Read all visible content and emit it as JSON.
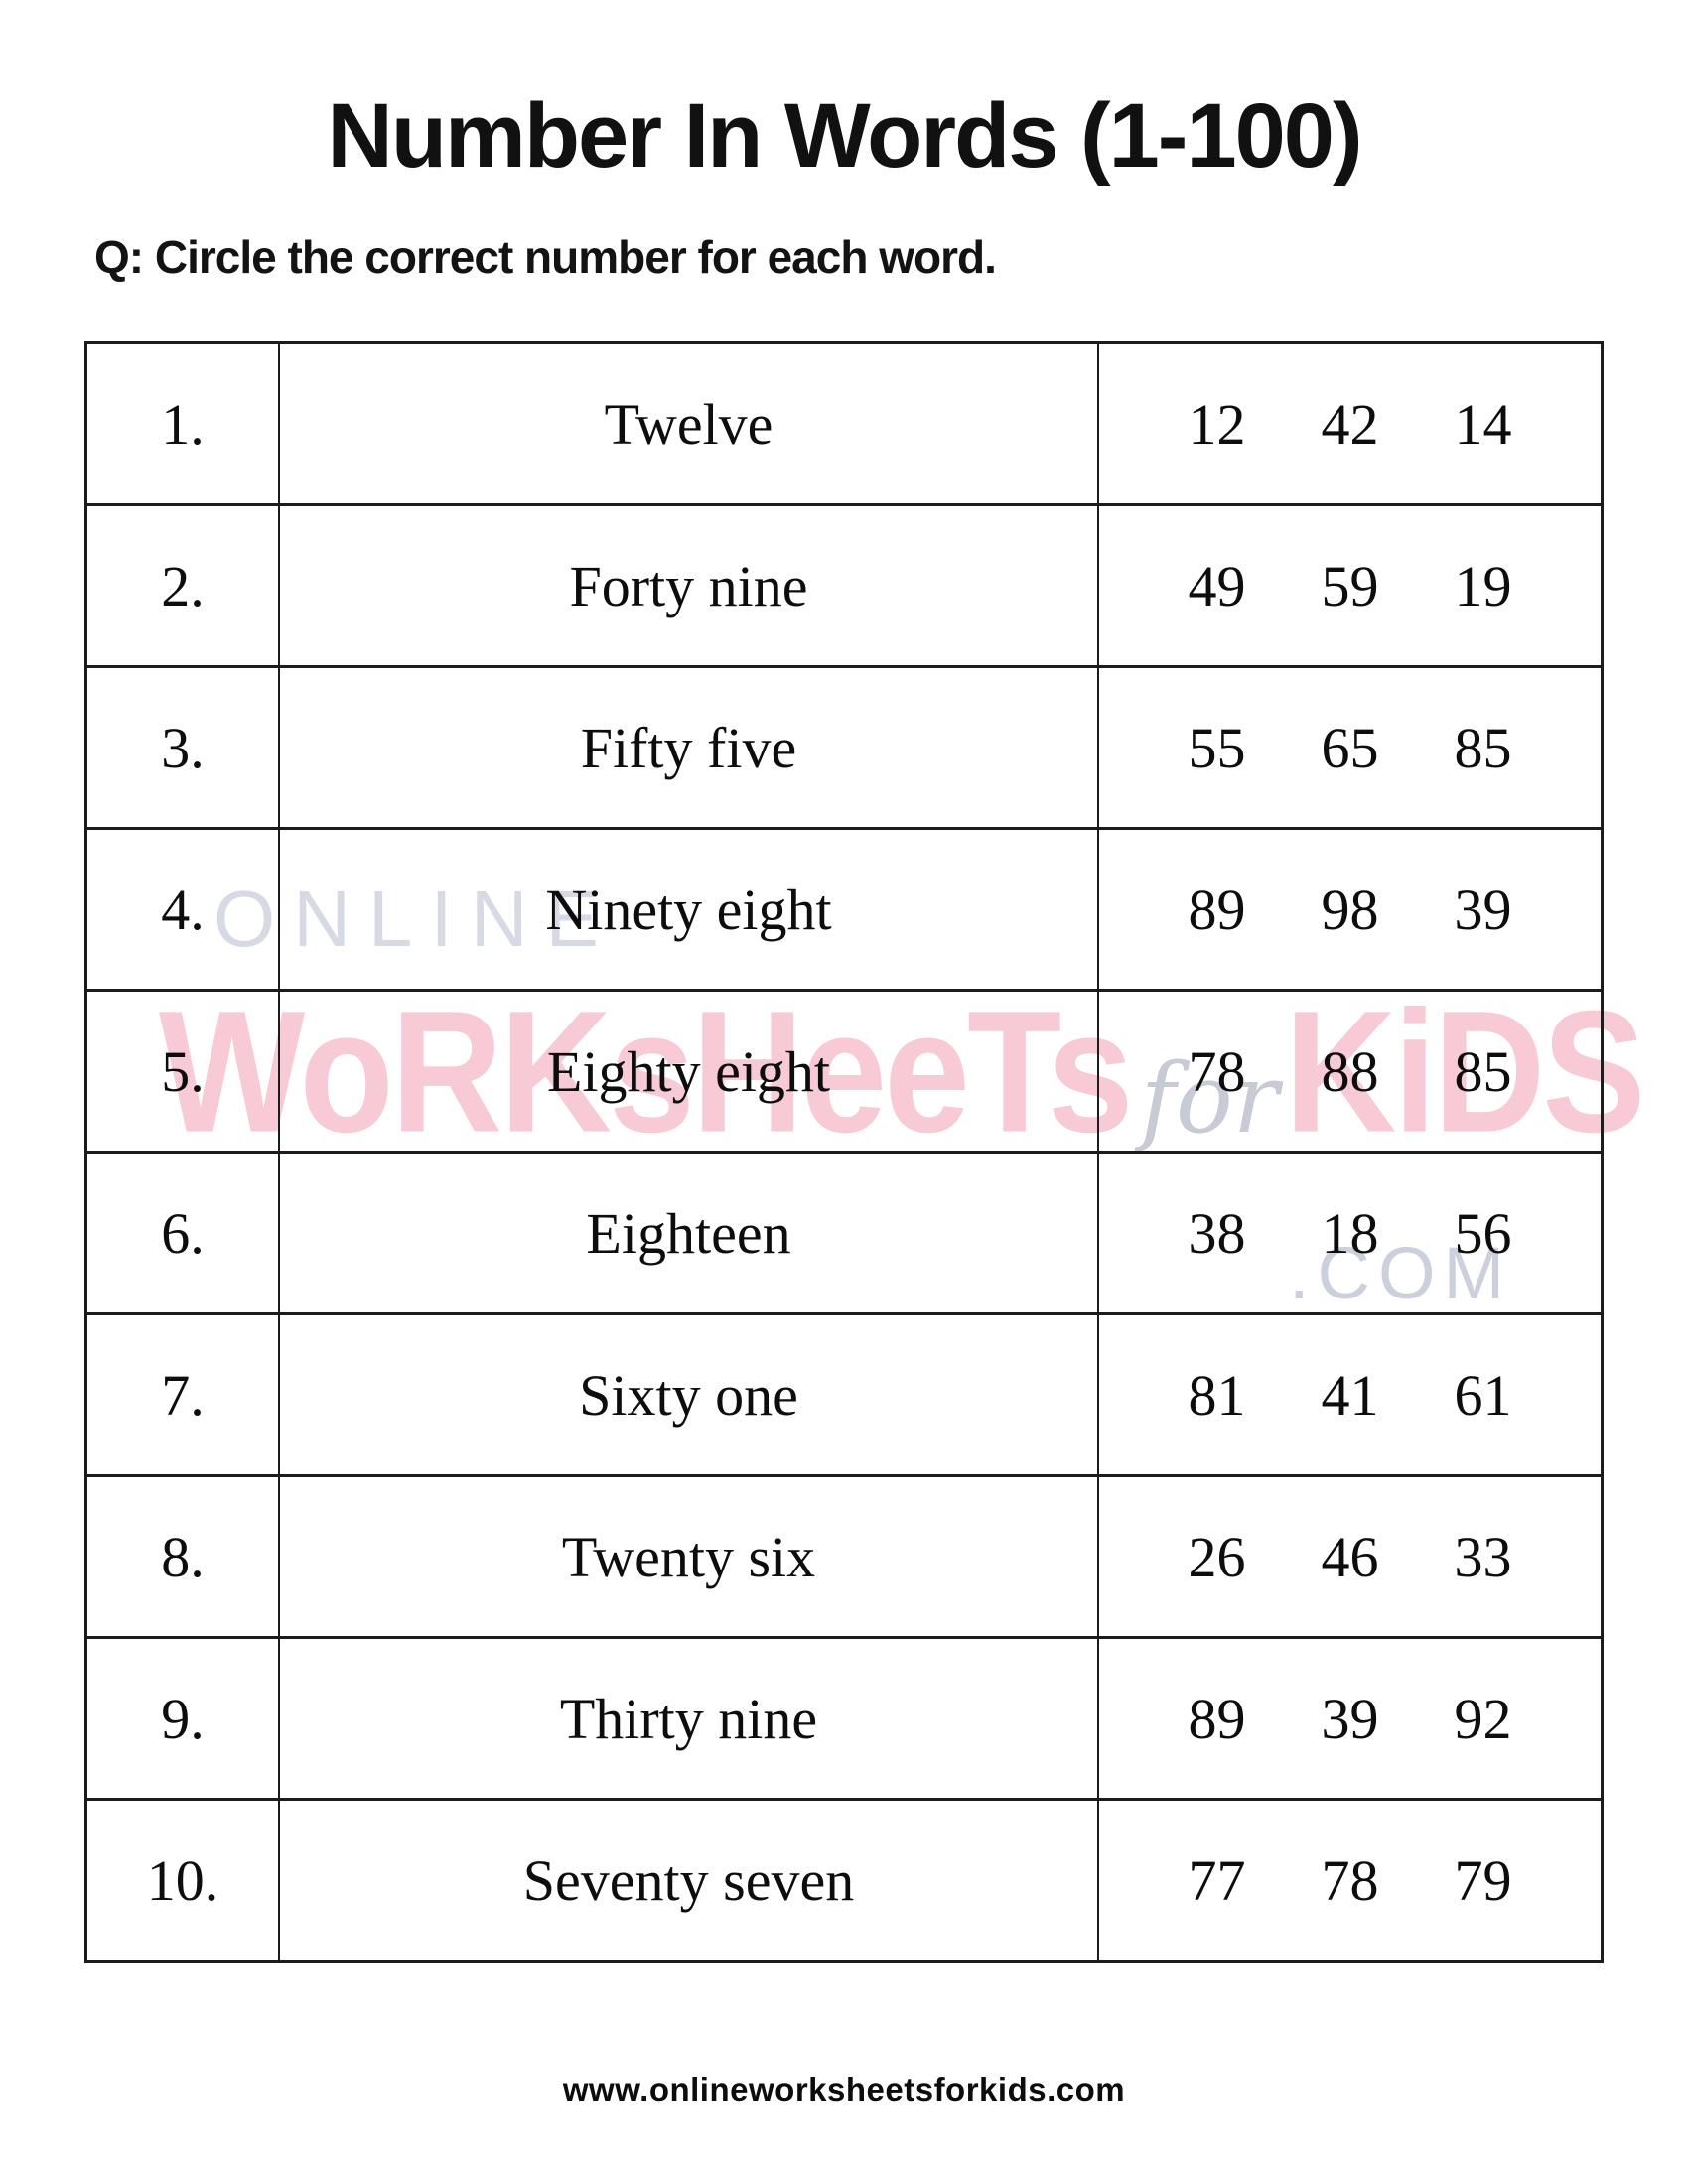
{
  "title": "Number In Words (1-100)",
  "instruction": "Q:  Circle the correct number for each word.",
  "worksheet": {
    "rows": [
      {
        "num": "1.",
        "word": "Twelve",
        "choices": [
          "12",
          "42",
          "14"
        ]
      },
      {
        "num": "2.",
        "word": "Forty nine",
        "choices": [
          "49",
          "59",
          "19"
        ]
      },
      {
        "num": "3.",
        "word": "Fifty five",
        "choices": [
          "55",
          "65",
          "85"
        ]
      },
      {
        "num": "4.",
        "word": "Ninety eight",
        "choices": [
          "89",
          "98",
          "39"
        ]
      },
      {
        "num": "5.",
        "word": "Eighty eight",
        "choices": [
          "78",
          "88",
          "85"
        ]
      },
      {
        "num": "6.",
        "word": "Eighteen",
        "choices": [
          "38",
          "18",
          "56"
        ]
      },
      {
        "num": "7.",
        "word": "Sixty one",
        "choices": [
          "81",
          "41",
          "61"
        ]
      },
      {
        "num": "8.",
        "word": "Twenty six",
        "choices": [
          "26",
          "46",
          "33"
        ]
      },
      {
        "num": "9.",
        "word": "Thirty nine",
        "choices": [
          "89",
          "39",
          "92"
        ]
      },
      {
        "num": "10.",
        "word": "Seventy seven",
        "choices": [
          "77",
          "78",
          "79"
        ]
      }
    ]
  },
  "watermark": {
    "online": "ONLINE",
    "brand_left": "WoRKsHeeTs",
    "for_word": "for",
    "brand_right": "KiDS",
    "com": ".COM",
    "pink_color": "#f8cad5",
    "gray_color": "#d7dae4"
  },
  "footer": "www.onlineworksheetsforkids.com"
}
